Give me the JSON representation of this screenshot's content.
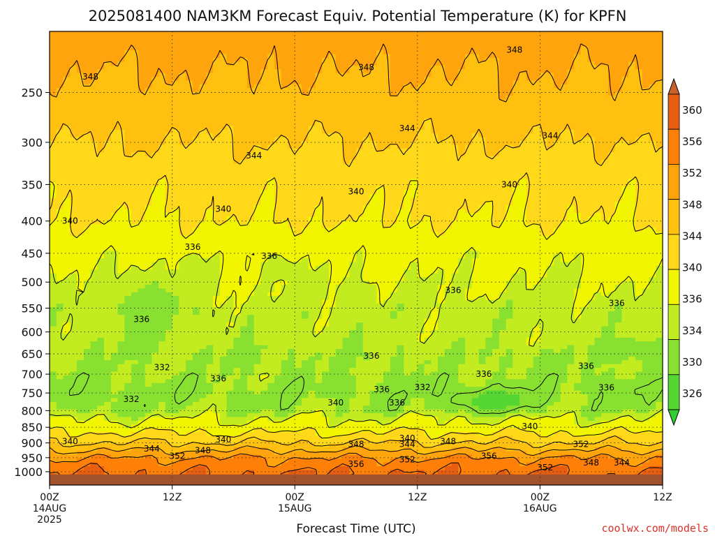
{
  "chart_data": {
    "type": "heatmap",
    "title": "2025081400 NAM3KM Forecast Equiv. Potential Temperature (K) for KPFN",
    "xlabel": "Forecast Time (UTC)",
    "ylabel": "",
    "credit": "coolwx.com/models",
    "x_range_hours": [
      0,
      60
    ],
    "y_range_hpa": [
      200,
      1050
    ],
    "y_scale": "log",
    "grid": "dotted",
    "legend_placement": "right",
    "y_ticks": [
      250,
      300,
      350,
      400,
      450,
      500,
      550,
      600,
      650,
      700,
      750,
      800,
      850,
      900,
      950,
      1000
    ],
    "y_tick_labels": [
      "250",
      "300",
      "350",
      "400",
      "450",
      "500",
      "550",
      "600",
      "650",
      "700",
      "750",
      "800",
      "850",
      "900",
      "950",
      "1000"
    ],
    "x_ticks": [
      {
        "hour": 0,
        "line1": "00Z",
        "line2": "14AUG",
        "line3": "2025"
      },
      {
        "hour": 12,
        "line1": "12Z",
        "line2": "",
        "line3": ""
      },
      {
        "hour": 24,
        "line1": "00Z",
        "line2": "15AUG",
        "line3": ""
      },
      {
        "hour": 36,
        "line1": "12Z",
        "line2": "",
        "line3": ""
      },
      {
        "hour": 48,
        "line1": "00Z",
        "line2": "16AUG",
        "line3": ""
      },
      {
        "hour": 60,
        "line1": "12Z",
        "line2": "",
        "line3": ""
      }
    ],
    "colorbar": {
      "levels": [
        "326",
        "330",
        "334",
        "336",
        "340",
        "344",
        "348",
        "352",
        "356",
        "360"
      ],
      "colors": [
        "#33cc33",
        "#55d633",
        "#88e030",
        "#c2ec20",
        "#f2f500",
        "#ffd81a",
        "#ffc010",
        "#ffa40c",
        "#ff8008",
        "#e85e10",
        "#c7622c"
      ]
    },
    "profile": [
      {
        "p": 200,
        "theta": 350
      },
      {
        "p": 250,
        "theta": 347
      },
      {
        "p": 300,
        "theta": 344
      },
      {
        "p": 350,
        "theta": 341
      },
      {
        "p": 400,
        "theta": 340
      },
      {
        "p": 450,
        "theta": 337
      },
      {
        "p": 500,
        "theta": 336
      },
      {
        "p": 550,
        "theta": 335
      },
      {
        "p": 600,
        "theta": 335
      },
      {
        "p": 650,
        "theta": 334
      },
      {
        "p": 700,
        "theta": 334
      },
      {
        "p": 750,
        "theta": 333
      },
      {
        "p": 800,
        "theta": 334
      },
      {
        "p": 850,
        "theta": 338
      },
      {
        "p": 900,
        "theta": 344
      },
      {
        "p": 950,
        "theta": 352
      },
      {
        "p": 1000,
        "theta": 356
      }
    ],
    "contour_levels": [
      332,
      336,
      340,
      344,
      348,
      352,
      356
    ],
    "moist_cells": [
      {
        "t": 9.5,
        "p": 555,
        "dt": 3.0,
        "dp": 65,
        "v": 332
      },
      {
        "t": 4.0,
        "p": 750,
        "dt": 2.5,
        "dp": 45,
        "v": 332
      },
      {
        "t": 13.5,
        "p": 470,
        "dt": 1.5,
        "dp": 25,
        "v": 335
      },
      {
        "t": 22.5,
        "p": 475,
        "dt": 2.0,
        "dp": 30,
        "v": 335
      },
      {
        "t": 30.0,
        "p": 520,
        "dt": 2.0,
        "dp": 22,
        "v": 335
      },
      {
        "t": 42.5,
        "p": 575,
        "dt": 2.5,
        "dp": 25,
        "v": 334
      },
      {
        "t": 43.5,
        "p": 770,
        "dt": 4.0,
        "dp": 30,
        "v": 328
      },
      {
        "t": 57.0,
        "p": 640,
        "dt": 3.0,
        "dp": 22,
        "v": 332
      },
      {
        "t": 54.5,
        "p": 730,
        "dt": 2.5,
        "dp": 22,
        "v": 332
      },
      {
        "t": 31.5,
        "p": 730,
        "dt": 3.0,
        "dp": 22,
        "v": 334
      }
    ],
    "contour_labels": [
      {
        "t": 4.0,
        "p": 236,
        "text": "348"
      },
      {
        "t": 31.0,
        "p": 228,
        "text": "348"
      },
      {
        "t": 45.5,
        "p": 214,
        "text": "348"
      },
      {
        "t": 35.0,
        "p": 285,
        "text": "344"
      },
      {
        "t": 49.0,
        "p": 293,
        "text": "344"
      },
      {
        "t": 20.0,
        "p": 315,
        "text": "344"
      },
      {
        "t": 30.0,
        "p": 359,
        "text": "340"
      },
      {
        "t": 45.0,
        "p": 350,
        "text": "340"
      },
      {
        "t": 17.0,
        "p": 383,
        "text": "340"
      },
      {
        "t": 2.0,
        "p": 400,
        "text": "340"
      },
      {
        "t": 14.0,
        "p": 440,
        "text": "336"
      },
      {
        "t": 21.5,
        "p": 455,
        "text": "336"
      },
      {
        "t": 39.5,
        "p": 515,
        "text": "336"
      },
      {
        "t": 55.5,
        "p": 540,
        "text": "336"
      },
      {
        "t": 9.0,
        "p": 573,
        "text": "336"
      },
      {
        "t": 31.5,
        "p": 655,
        "text": "336"
      },
      {
        "t": 52.5,
        "p": 680,
        "text": "336"
      },
      {
        "t": 54.5,
        "p": 736,
        "text": "336"
      },
      {
        "t": 42.5,
        "p": 700,
        "text": "336"
      },
      {
        "t": 16.5,
        "p": 712,
        "text": "336"
      },
      {
        "t": 11.0,
        "p": 683,
        "text": "332"
      },
      {
        "t": 8.0,
        "p": 767,
        "text": "332"
      },
      {
        "t": 36.5,
        "p": 735,
        "text": "332"
      },
      {
        "t": 32.5,
        "p": 740,
        "text": "336"
      },
      {
        "t": 28.0,
        "p": 777,
        "text": "340"
      },
      {
        "t": 34.0,
        "p": 777,
        "text": "336"
      },
      {
        "t": 47.0,
        "p": 848,
        "text": "340"
      },
      {
        "t": 2.0,
        "p": 895,
        "text": "340"
      },
      {
        "t": 17.0,
        "p": 889,
        "text": "340"
      },
      {
        "t": 10.0,
        "p": 920,
        "text": "344"
      },
      {
        "t": 12.5,
        "p": 945,
        "text": "352"
      },
      {
        "t": 15.0,
        "p": 925,
        "text": "348"
      },
      {
        "t": 30.0,
        "p": 905,
        "text": "348"
      },
      {
        "t": 35.0,
        "p": 885,
        "text": "340"
      },
      {
        "t": 35.0,
        "p": 905,
        "text": "344"
      },
      {
        "t": 39.0,
        "p": 895,
        "text": "348"
      },
      {
        "t": 52.0,
        "p": 905,
        "text": "352"
      },
      {
        "t": 35.0,
        "p": 957,
        "text": "352"
      },
      {
        "t": 30.0,
        "p": 973,
        "text": "356"
      },
      {
        "t": 43.0,
        "p": 945,
        "text": "356"
      },
      {
        "t": 48.5,
        "p": 985,
        "text": "352"
      },
      {
        "t": 53.0,
        "p": 968,
        "text": "348"
      },
      {
        "t": 56.0,
        "p": 968,
        "text": "344"
      }
    ]
  }
}
